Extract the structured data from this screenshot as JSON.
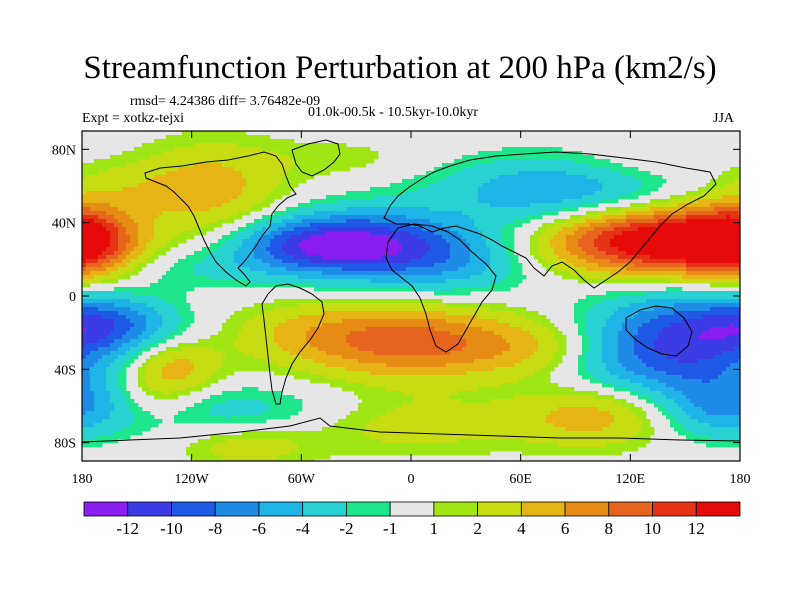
{
  "chart_data": {
    "type": "heatmap",
    "title": "Streamfunction Perturbation at 200 hPa (km2/s)",
    "stats_line": "rmsd= 4.24386 diff= 3.76482e-09",
    "experiment": "Expt = xotkz-tejxi",
    "period": "01.0k-00.5k - 10.5kyr-10.0kyr",
    "season": "JJA",
    "xlim": [
      -180,
      180
    ],
    "ylim": [
      -90,
      90
    ],
    "x_tick_labels": [
      "180",
      "120W",
      "60W",
      "0",
      "60E",
      "120E",
      "180"
    ],
    "x_tick_values": [
      -180,
      -120,
      -60,
      0,
      60,
      120,
      180
    ],
    "y_tick_labels": [
      "80N",
      "40N",
      "0",
      "40S",
      "80S"
    ],
    "y_tick_values": [
      80,
      40,
      0,
      -40,
      -80
    ],
    "colorbar": {
      "labels": [
        "-12",
        "-10",
        "-8",
        "-6",
        "-4",
        "-2",
        "-1",
        "1",
        "2",
        "4",
        "6",
        "8",
        "10",
        "12"
      ],
      "levels": [
        -12,
        -10,
        -8,
        -6,
        -4,
        -2,
        -1,
        1,
        2,
        4,
        6,
        8,
        10,
        12
      ],
      "colors": [
        "#8a1df0",
        "#3c3ce6",
        "#1e5ae6",
        "#1e8ce6",
        "#1eb4e6",
        "#28d2d2",
        "#1ee68c",
        "#e6e6e6",
        "#a0e614",
        "#c8dc14",
        "#e6b414",
        "#e68c14",
        "#e6641e",
        "#e63214",
        "#e60a0a"
      ]
    },
    "field_centers": [
      {
        "lon": -20,
        "lat": 28,
        "value": -11,
        "dlon": 38,
        "dlat": 13
      },
      {
        "lon": -60,
        "lat": 28,
        "value": -6,
        "dlon": 28,
        "dlat": 10
      },
      {
        "lon": 25,
        "lat": 15,
        "value": -3,
        "dlon": 30,
        "dlat": 12
      },
      {
        "lon": 80,
        "lat": 58,
        "value": -6,
        "dlon": 45,
        "dlat": 13
      },
      {
        "lon": -115,
        "lat": 15,
        "value": -2,
        "dlon": 35,
        "dlat": 8
      },
      {
        "lon": -165,
        "lat": -15,
        "value": -6,
        "dlon": 25,
        "dlat": 10
      },
      {
        "lon": -140,
        "lat": -55,
        "value": 3,
        "dlon": 18,
        "dlat": 10
      },
      {
        "lon": 150,
        "lat": -22,
        "value": -10,
        "dlon": 38,
        "dlat": 17
      },
      {
        "lon": 120,
        "lat": -40,
        "value": -3,
        "dlon": 45,
        "dlat": 12
      },
      {
        "lon": 170,
        "lat": -60,
        "value": -6,
        "dlon": 25,
        "dlat": 12
      },
      {
        "lon": -100,
        "lat": -62,
        "value": -3,
        "dlon": 50,
        "dlat": 10
      },
      {
        "lon": 150,
        "lat": 30,
        "value": 13,
        "dlon": 35,
        "dlat": 13
      },
      {
        "lon": 105,
        "lat": 30,
        "value": 6,
        "dlon": 30,
        "dlat": 12
      },
      {
        "lon": -180,
        "lat": 30,
        "value": 9,
        "dlon": 20,
        "dlat": 14
      },
      {
        "lon": -110,
        "lat": 58,
        "value": 5,
        "dlon": 28,
        "dlat": 18
      },
      {
        "lon": -160,
        "lat": 60,
        "value": 2,
        "dlon": 25,
        "dlat": 10
      },
      {
        "lon": 0,
        "lat": -25,
        "value": 9,
        "dlon": 40,
        "dlat": 14
      },
      {
        "lon": -60,
        "lat": -20,
        "value": 3,
        "dlon": 30,
        "dlat": 12
      },
      {
        "lon": 70,
        "lat": -30,
        "value": 4,
        "dlon": 30,
        "dlat": 12
      },
      {
        "lon": -130,
        "lat": -38,
        "value": 5,
        "dlon": 18,
        "dlat": 10
      },
      {
        "lon": 0,
        "lat": -70,
        "value": 3,
        "dlon": 45,
        "dlat": 12
      },
      {
        "lon": 100,
        "lat": -65,
        "value": 5,
        "dlon": 30,
        "dlat": 12
      },
      {
        "lon": -90,
        "lat": -82,
        "value": 3,
        "dlon": 25,
        "dlat": 8
      },
      {
        "lon": 120,
        "lat": 72,
        "value": 1.5,
        "dlon": 30,
        "dlat": 8
      },
      {
        "lon": -40,
        "lat": 75,
        "value": 1.5,
        "dlon": 35,
        "dlat": 8
      }
    ]
  }
}
